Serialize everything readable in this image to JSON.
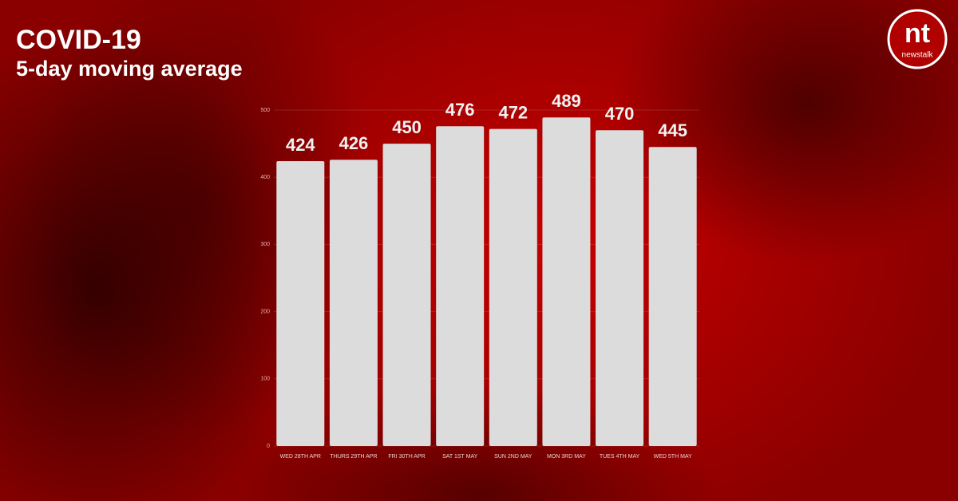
{
  "chart_data": {
    "type": "bar",
    "title": "COVID-19",
    "subtitle": "5-day moving average",
    "categories": [
      "WED 28TH APR",
      "THURS 29TH APR",
      "FRI 30TH APR",
      "SAT 1ST MAY",
      "SUN 2ND MAY",
      "MON 3RD MAY",
      "TUES 4TH MAY",
      "WED 5TH MAY"
    ],
    "values": [
      424,
      426,
      450,
      476,
      472,
      489,
      470,
      445
    ],
    "color": "#dcdcdc",
    "ylim": [
      0,
      500
    ],
    "yticks": [
      0,
      100,
      200,
      300,
      400,
      500
    ],
    "grid": true
  },
  "logo": {
    "initials": "nt",
    "name": "newstalk"
  }
}
